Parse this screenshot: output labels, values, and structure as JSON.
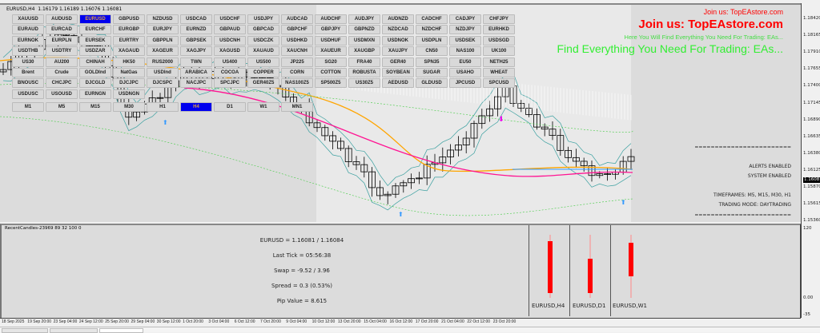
{
  "chart_header": {
    "symbol_tf": "EURUSD,H4",
    "ohlc": "1.16179 1.16189 1.16076 1.16081"
  },
  "symbol_buttons": [
    [
      "XAUUSD",
      "AUDUSD",
      "EURUSD",
      "GBPUSD",
      "NZDUSD",
      "USDCAD",
      "USDCHF",
      "USDJPY",
      "AUDCAD",
      "AUDCHF",
      "AUDJPY",
      "AUDNZD",
      "CADCHF",
      "CADJPY",
      "CHFJPY"
    ],
    [
      "EURAUD",
      "EURCAD",
      "EURCHF",
      "EURGBP",
      "EURJPY",
      "EURNZD",
      "GBPAUD",
      "GBPCAD",
      "GBPCHF",
      "GBPJPY",
      "GBPNZD",
      "NZDCAD",
      "NZDCHF",
      "NZDJPY",
      "EURHKD"
    ],
    [
      "EURNOK",
      "EURPLN",
      "EURSEK",
      "EURTRY",
      "GBPPLN",
      "GBPSEK",
      "USDCNH",
      "USDCZK",
      "USDHKD",
      "USDHUF",
      "USDMXN",
      "USDNOK",
      "USDPLN",
      "USDSEK",
      "USDSGD"
    ],
    [
      "USDTHB",
      "USDTRY",
      "USDZAR",
      "XAGAUD",
      "XAGEUR",
      "XAGJPY",
      "XAGUSD",
      "XAUAUD",
      "XAUCNH",
      "XAUEUR",
      "XAUGBP",
      "XAUJPY",
      "CN50",
      "NAS100",
      "UK100"
    ],
    [
      "US30",
      "AU200",
      "CHINAH",
      "HK50",
      "RUS2000",
      "TWN",
      "US400",
      "US500",
      "JP225",
      "SG20",
      "FRA40",
      "GER40",
      "SPN35",
      "EU50",
      "NETH25"
    ],
    [
      "Brent",
      "Crude",
      "GOLDInd",
      "NatGas",
      "USDInd",
      "ARABICA",
      "COCOA",
      "COPPER",
      "CORN",
      "COTTON",
      "ROBUSTA",
      "SOYBEAN",
      "SUGAR",
      "USAHO",
      "WHEAT"
    ],
    [
      "BNOUSC",
      "CHCJPC",
      "DJCGLD",
      "DJCJPC",
      "DJCSPC",
      "NACJPC",
      "SPCJPC",
      "GER40Z5",
      "NAS100Z5",
      "SP500Z5",
      "US30Z5",
      "AEDUSD",
      "GLDUSD",
      "JPCUSD",
      "SPCUSD"
    ],
    [
      "USDUSC",
      "USOUSD",
      "EURNGN",
      "USDNGN"
    ]
  ],
  "active_symbol": "EURUSD",
  "timeframe_buttons": [
    "M1",
    "M5",
    "M15",
    "M30",
    "H1",
    "H4",
    "D1",
    "W1",
    "MN1"
  ],
  "active_timeframe": "H4",
  "promo": {
    "join_large": "Join us: TopEAstore.com",
    "join_small": "Join us: TopEAstore.com",
    "tagline_small": "Here You Will Find Everything You Need For Trading: EAs...",
    "tagline_large": "Find Everything You Need For Trading: EAs..."
  },
  "status_panel": {
    "divider": "========================",
    "alerts": "ALERTS ENABLED",
    "system": "SYSTEM ENABLED",
    "timeframes": "TIMEFRAMES: M5, M15, M30, H1",
    "mode": "TRADING MODE: DAYTRADING"
  },
  "price_axis": [
    "1.18420",
    "1.18165",
    "1.17910",
    "1.17655",
    "1.17400",
    "1.17145",
    "1.16890",
    "1.16635",
    "1.16380",
    "1.16125",
    "1.15870",
    "1.15615",
    "1.15360"
  ],
  "current_price": "1.16081",
  "subwindow": {
    "title": "RecentCandles-23969 89 32 100 0",
    "info": [
      "EURUSD = 1.16081 / 1.16084",
      "Last Tick = 05:56:38",
      "Swap = -9.52 / 3.96",
      "Spread = 0.3  (0.53%)",
      "Pip Value = 8.615"
    ],
    "candle_labels": [
      "EURUSD,H4",
      "EURUSD,D1",
      "EURUSD,W1"
    ],
    "axis": [
      "120",
      "0.00",
      "-35"
    ]
  },
  "time_axis": [
    "18 Sep 2025",
    "19 Sep 20:00",
    "23 Sep 04:00",
    "24 Sep 12:00",
    "25 Sep 20:00",
    "29 Sep 04:00",
    "30 Sep 12:00",
    "1 Oct 20:00",
    "3 Oct 04:00",
    "6 Oct 12:00",
    "7 Oct 20:00",
    "9 Oct 04:00",
    "10 Oct 12:00",
    "13 Oct 20:00",
    "15 Oct 04:00",
    "16 Oct 12:00",
    "17 Oct 20:00",
    "21 Oct 04:00",
    "22 Oct 12:00",
    "23 Oct 20:00"
  ],
  "colors": {
    "bull_bear": "#000000",
    "ma_fast": "#ff1493",
    "ma_slow": "#ffa500",
    "bands": "#3aa0a0",
    "recent_candle": "#ff0000",
    "active_button": "#0000ee"
  }
}
